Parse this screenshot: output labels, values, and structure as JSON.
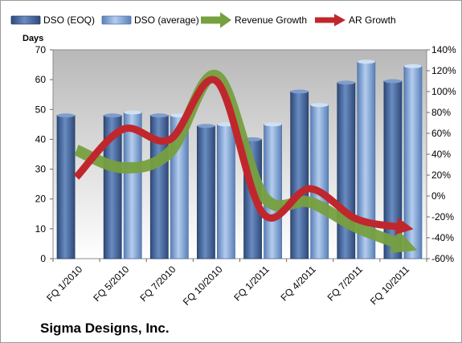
{
  "chart_data": {
    "type": "bar",
    "company": "Sigma Designs, Inc.",
    "ylabel": "Days",
    "categories": [
      "FQ 1/2010",
      "FQ 5/2010",
      "FQ 7/2010",
      "FQ 10/2010",
      "FQ 1/2011",
      "FQ 4/2011",
      "FQ 7/2011",
      "FQ 10/2011"
    ],
    "series": [
      {
        "name": "DSO (EOQ)",
        "kind": "bar",
        "axis": "left",
        "color": "#4a6aa0",
        "values": [
          48,
          48,
          48,
          44.5,
          40,
          56,
          59,
          59.5
        ]
      },
      {
        "name": "DSO (average)",
        "kind": "bar",
        "axis": "left",
        "color": "#84a8d8",
        "values": [
          null,
          49,
          48,
          45,
          45,
          51.5,
          66,
          64.5
        ]
      },
      {
        "name": "Revenue Growth",
        "kind": "line",
        "axis": "right",
        "color": "#77a040",
        "values": [
          44,
          27,
          42,
          115,
          0,
          -6,
          -30,
          -47
        ]
      },
      {
        "name": "AR Growth",
        "kind": "line",
        "axis": "right",
        "color": "#c0272d",
        "values": [
          18,
          64,
          54,
          110,
          -17,
          7,
          -22,
          -30
        ]
      }
    ],
    "left_axis": {
      "min": 0,
      "max": 70,
      "ticks": [
        "0",
        "10",
        "20",
        "30",
        "40",
        "50",
        "60",
        "70"
      ]
    },
    "right_axis": {
      "min": -60,
      "max": 140,
      "ticks": [
        "-60%",
        "-40%",
        "-20%",
        "0%",
        "20%",
        "40%",
        "60%",
        "80%",
        "100%",
        "120%",
        "140%"
      ]
    },
    "legend_position": "top",
    "grid": false
  }
}
